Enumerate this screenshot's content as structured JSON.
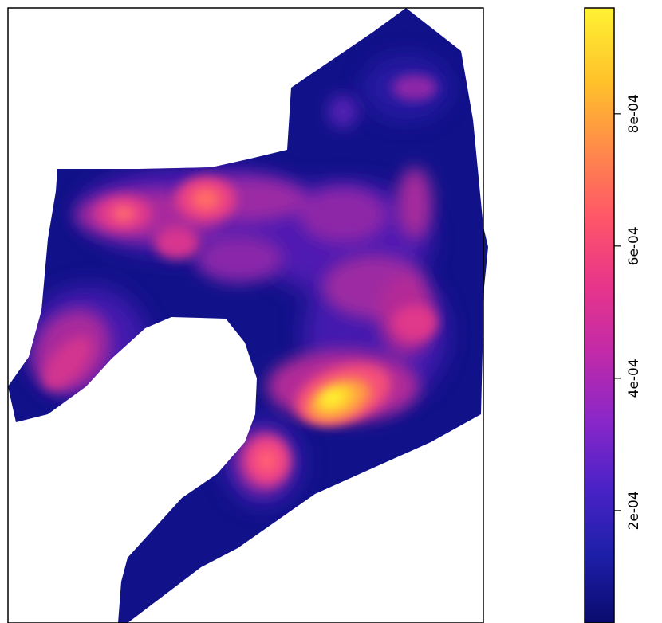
{
  "chart_data": {
    "type": "heatmap",
    "title": "",
    "xlabel": "",
    "ylabel": "",
    "colorbar": {
      "ticks": [
        {
          "value": 0.0002,
          "label": "2e-04"
        },
        {
          "value": 0.0004,
          "label": "4e-04"
        },
        {
          "value": 0.0006,
          "label": "6e-04"
        },
        {
          "value": 0.0008,
          "label": "8e-04"
        }
      ],
      "range": [
        3e-05,
        0.00096
      ],
      "colormap": [
        "#0a0a6e",
        "#1d1fa8",
        "#4a22c7",
        "#8a27c8",
        "#c12aa8",
        "#e8358a",
        "#ff5668",
        "#ff8a4a",
        "#ffc12a",
        "#fff234"
      ]
    },
    "hotspots": [
      {
        "name": "yellow-peak",
        "value": 0.00093
      },
      {
        "name": "upper-left-magenta",
        "value": 0.00059
      },
      {
        "name": "top-center-magenta",
        "value": 0.00063
      },
      {
        "name": "lower-center-magenta",
        "value": 0.00052
      },
      {
        "name": "left-arm-band",
        "value": 0.00046
      },
      {
        "name": "right-ridge",
        "value": 0.00045
      },
      {
        "name": "top-right-purple",
        "value": 0.00031
      }
    ],
    "grid": false,
    "legend_position": "right"
  },
  "colors": {
    "background": "#ffffff",
    "frame": "#000000",
    "low_density": "#11128a"
  }
}
